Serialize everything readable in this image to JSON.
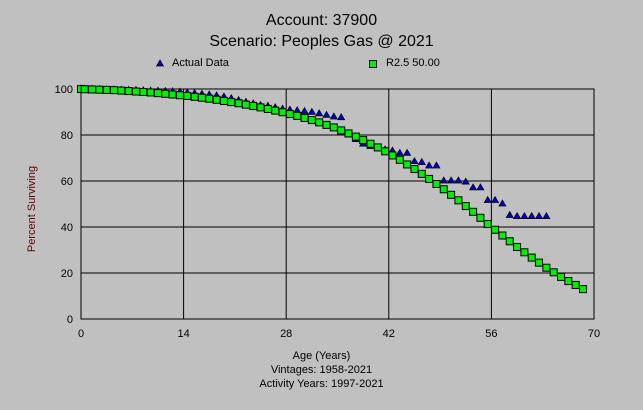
{
  "chart_data": {
    "type": "scatter",
    "title": [
      "Account: 37900",
      "Scenario: Peoples Gas @ 2021"
    ],
    "xlabel": "Age (Years)",
    "ylabel": "Percent Surviving",
    "subtitles": [
      "Vintages: 1958-2021",
      "Activity Years: 1997-2021"
    ],
    "xlim": [
      0,
      70
    ],
    "ylim": [
      0,
      100
    ],
    "xticks": [
      0,
      14,
      28,
      42,
      56,
      70
    ],
    "yticks": [
      0,
      20,
      40,
      60,
      80,
      100
    ],
    "grid": true,
    "legend_position": "top",
    "series": [
      {
        "name": "Actual Data",
        "marker": "triangle",
        "color": "#0000cc",
        "x": [
          0,
          0.5,
          1.5,
          2.5,
          3.5,
          4.5,
          5.5,
          6.5,
          7.5,
          8.5,
          9.5,
          10.5,
          11.5,
          12.5,
          13.5,
          14.5,
          15.5,
          16.5,
          17.5,
          18.5,
          19.5,
          20.5,
          21.5,
          22.5,
          23.5,
          24.5,
          25.5,
          26.5,
          27.5,
          28.5,
          29.5,
          30.5,
          31.5,
          32.5,
          33.5,
          34.5,
          35.5,
          36.5,
          37.5,
          38.5,
          39.5,
          40.5,
          41.5,
          42.5,
          43.5,
          44.5,
          45.5,
          46.5,
          47.5,
          48.5,
          49.5,
          50.5,
          51.5,
          52.5,
          53.5,
          54.5,
          55.5,
          56.5,
          57.5,
          58.5,
          59.5,
          60.5,
          61.5,
          62.5,
          63.5
        ],
        "y": [
          100,
          100,
          99.9,
          99.8,
          99.7,
          99.6,
          99.5,
          99.4,
          99.3,
          99.2,
          99.1,
          99.0,
          98.9,
          98.8,
          98.6,
          98.3,
          98.0,
          97.7,
          97.4,
          97.0,
          96.5,
          95.8,
          95.0,
          94.2,
          93.5,
          92.8,
          92.5,
          91.8,
          91.2,
          90.8,
          90.5,
          90.2,
          89.8,
          89.2,
          88.5,
          87.8,
          87.5,
          80,
          78,
          76,
          75,
          74,
          73.5,
          73,
          72,
          72,
          68.4,
          68,
          66.5,
          66.5,
          60,
          60,
          60,
          59.5,
          57,
          57,
          51.5,
          51.5,
          50,
          45,
          44.5,
          44.5,
          44.5,
          44.5,
          44.5
        ]
      },
      {
        "name": "R2.5 50.00",
        "marker": "square",
        "color": "#00ee00",
        "x": [
          0,
          0.5,
          1.5,
          2.5,
          3.5,
          4.5,
          5.5,
          6.5,
          7.5,
          8.5,
          9.5,
          10.5,
          11.5,
          12.5,
          13.5,
          14.5,
          15.5,
          16.5,
          17.5,
          18.5,
          19.5,
          20.5,
          21.5,
          22.5,
          23.5,
          24.5,
          25.5,
          26.5,
          27.5,
          28.5,
          29.5,
          30.5,
          31.5,
          32.5,
          33.5,
          34.5,
          35.5,
          36.5,
          37.5,
          38.5,
          39.5,
          40.5,
          41.5,
          42.5,
          43.5,
          44.5,
          45.5,
          46.5,
          47.5,
          48.5,
          49.5,
          50.5,
          51.5,
          52.5,
          53.5,
          54.5,
          55.5,
          56.5,
          57.5,
          58.5,
          59.5,
          60.5,
          61.5,
          62.5,
          63.5,
          64.5,
          65.5,
          66.5,
          67.5,
          68.5
        ],
        "y": [
          100,
          99.9,
          99.8,
          99.7,
          99.6,
          99.5,
          99.3,
          99.1,
          98.9,
          98.7,
          98.5,
          98.2,
          97.9,
          97.6,
          97.3,
          97.0,
          96.6,
          96.2,
          95.8,
          95.3,
          94.8,
          94.3,
          93.8,
          93.2,
          92.6,
          92.0,
          91.3,
          90.6,
          89.9,
          89.1,
          88.3,
          87.4,
          86.5,
          85.5,
          84.4,
          83.3,
          82.0,
          80.7,
          79.3,
          77.8,
          76.2,
          74.6,
          72.9,
          71.1,
          69.2,
          67.2,
          65.2,
          63.1,
          60.9,
          58.7,
          56.4,
          54.0,
          51.6,
          49.1,
          46.6,
          44.0,
          41.3,
          38.8,
          36.3,
          33.8,
          31.3,
          29.0,
          26.7,
          24.5,
          22.3,
          20.3,
          18.3,
          16.5,
          14.8,
          13.0
        ]
      }
    ]
  }
}
